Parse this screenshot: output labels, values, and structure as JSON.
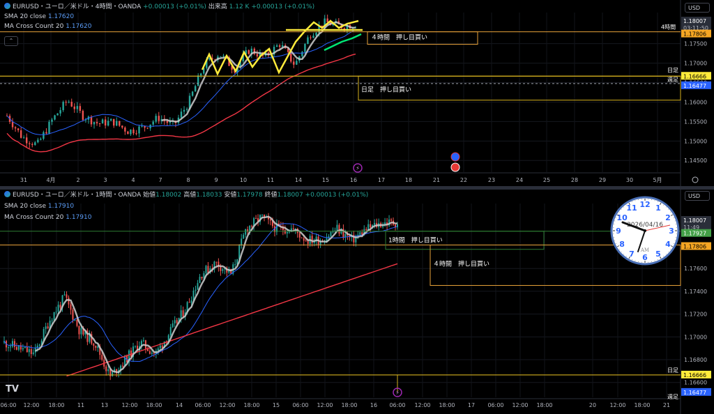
{
  "top": {
    "title": "EURUSD・ユーロ／米ドル・4時間・OANDA",
    "change": "+0.00013 (+0.01%)",
    "volume_label": "出来高",
    "volume": "1.12 K",
    "volume_change": "+0.00013 (+0.01%)",
    "sma_label": "SMA 20 close",
    "sma_value": "1.17620",
    "ma_label": "MA Cross Count 20",
    "ma_value": "1.17620",
    "currency": "USD",
    "price_tag": "1.18007",
    "countdown": "03:11:50",
    "tag_4h": "1.17806",
    "label_4h": "4時間",
    "tag_daily": "1.16666",
    "label_daily": "日足",
    "tag_weekly": "1.16477",
    "label_weekly": "週足",
    "box1": "４時間　押し目買い",
    "box2": "日足　押し目買い",
    "colors": {
      "up": "#26a69a",
      "down": "#ef5350",
      "sma": "#2962ff",
      "ma": "#f23645",
      "highlight": "#ffeb3b",
      "trend": "#00e676"
    }
  },
  "bottom": {
    "title": "EURUSD・ユーロ／米ドル・1時間・OANDA",
    "open_label": "始値",
    "open": "1.18002",
    "high_label": "高値",
    "high": "1.18033",
    "low_label": "安値",
    "low": "1.17978",
    "close_label": "終値",
    "close": "1.18007",
    "change": "+0.00013 (+0.01%)",
    "sma_label": "SMA 20 close",
    "sma_value": "1.17910",
    "ma_label": "MA Cross Count 20",
    "ma_value": "1.17910",
    "currency": "USD",
    "price_tag": "1.18007",
    "countdown": "11:49",
    "tag_green": "1.17927",
    "tag_4h": "1.17806",
    "tag_daily": "1.16666",
    "label_daily": "日足",
    "tag_weekly": "1.16477",
    "label_weekly": "週足",
    "box1": "1時間　押し目買い",
    "box2": "４時間　押し目買い",
    "logo": "TV"
  },
  "clock": {
    "date": "2026/04/16",
    "ampm": "AM"
  },
  "chart_data": [
    {
      "type": "candlestick",
      "title": "EURUSD・ユーロ／米ドル・4時間・OANDA",
      "ylim": [
        1.142,
        1.183
      ],
      "y_ticks": [
        "1.17500",
        "1.17000",
        "1.16500",
        "1.16000",
        "1.15500",
        "1.15000",
        "1.14500"
      ],
      "x_ticks": [
        "31",
        "4月",
        "2",
        "3",
        "4",
        "7",
        "8",
        "9",
        "10",
        "11",
        "14",
        "15",
        "16",
        "17",
        "18",
        "21",
        "22",
        "23",
        "24",
        "25",
        "28",
        "29",
        "30",
        "5月"
      ],
      "series": [
        {
          "name": "SMA 20 close",
          "last": 1.1762
        },
        {
          "name": "MA Cross Count 20",
          "last": 1.1762
        }
      ],
      "levels": {
        "4h": 1.17806,
        "daily": 1.16666,
        "weekly": 1.16477,
        "last": 1.18007
      }
    },
    {
      "type": "candlestick",
      "title": "EURUSD・ユーロ／米ドル・1時間・OANDA",
      "ylim": [
        1.1647,
        1.1817
      ],
      "y_ticks": [
        "1.17600",
        "1.17400",
        "1.17200",
        "1.17000",
        "1.16800",
        "1.16600"
      ],
      "x_ticks": [
        "06:00",
        "12:00",
        "18:00",
        "11",
        "13",
        "12:00",
        "18:00",
        "14",
        "06:00",
        "12:00",
        "18:00",
        "15",
        "06:00",
        "12:00",
        "18:00",
        "16",
        "06:00",
        "12:00",
        "18:00",
        "17",
        "06:00",
        "12:00",
        "18:00",
        "20",
        "12:00",
        "18:00",
        "21"
      ],
      "series": [
        {
          "name": "SMA 20 close",
          "last": 1.1791
        },
        {
          "name": "MA Cross Count 20",
          "last": 1.1791
        }
      ],
      "levels": {
        "green": 1.17927,
        "4h": 1.17806,
        "daily": 1.16666,
        "weekly": 1.16477,
        "last": 1.18007
      }
    }
  ]
}
